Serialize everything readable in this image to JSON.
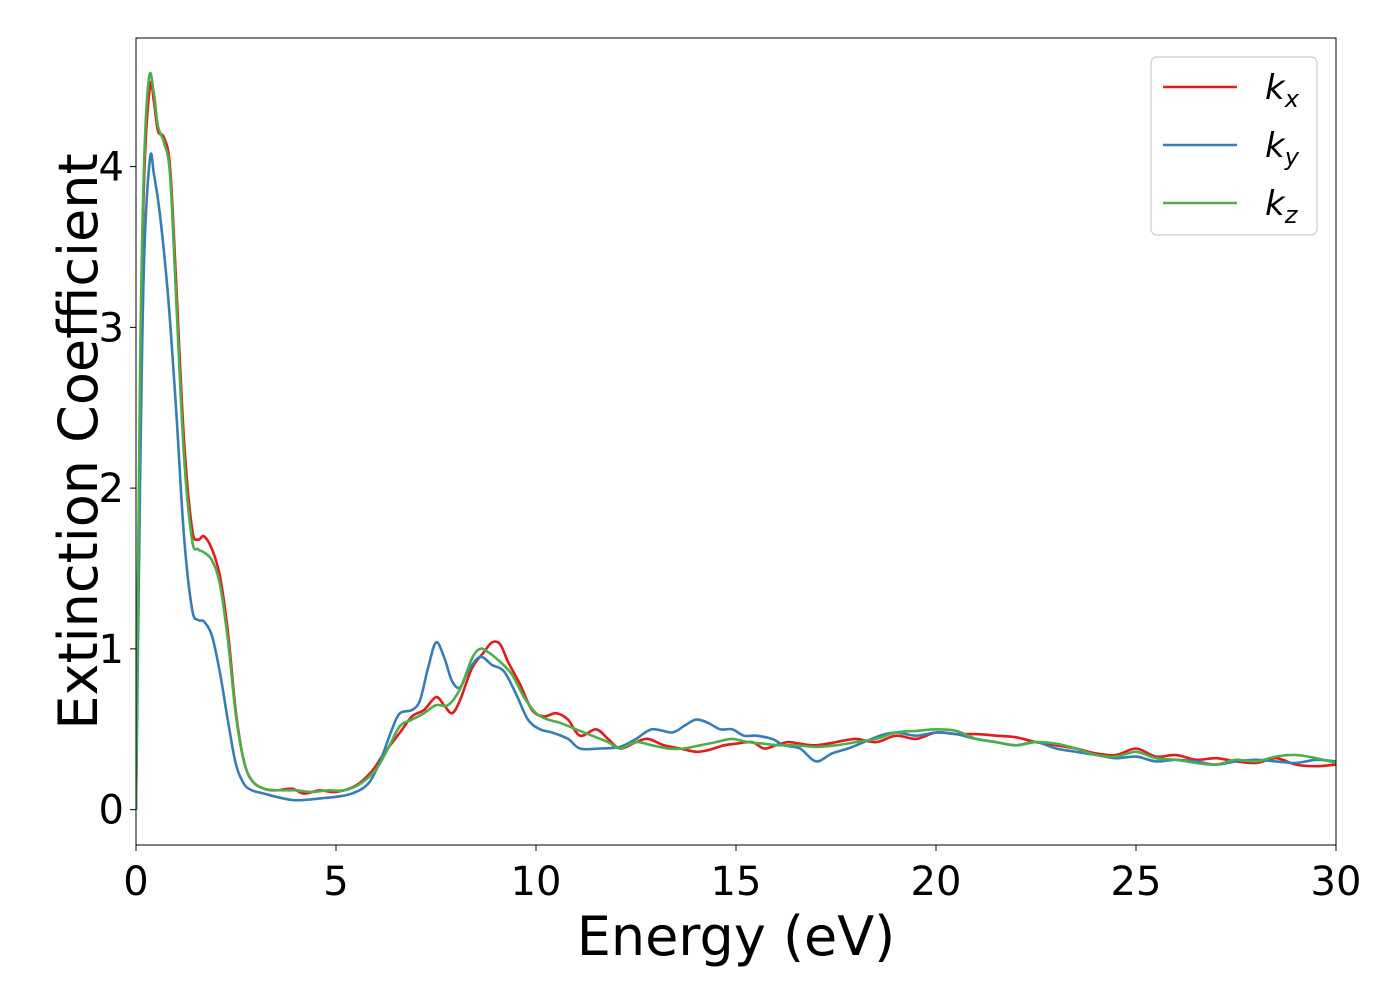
{
  "chart_data": {
    "type": "line",
    "xlabel": "Energy (eV)",
    "ylabel": "Extinction Coefficient",
    "xlim": [
      0,
      30
    ],
    "ylim": [
      -0.22,
      4.8
    ],
    "xticks": [
      0,
      5,
      10,
      15,
      20,
      25,
      30
    ],
    "yticks": [
      0,
      1,
      2,
      3,
      4
    ],
    "grid": false,
    "legend_position": "top-right",
    "series": [
      {
        "name": "kx",
        "name_main": "k",
        "name_sub": "x",
        "color": "#e41a1c",
        "points": [
          [
            0,
            0.0
          ],
          [
            0.1,
            2.5
          ],
          [
            0.2,
            3.9
          ],
          [
            0.35,
            4.5
          ],
          [
            0.45,
            4.4
          ],
          [
            0.55,
            4.22
          ],
          [
            0.7,
            4.18
          ],
          [
            0.85,
            4.0
          ],
          [
            1.0,
            3.3
          ],
          [
            1.2,
            2.3
          ],
          [
            1.4,
            1.75
          ],
          [
            1.55,
            1.68
          ],
          [
            1.7,
            1.7
          ],
          [
            1.9,
            1.62
          ],
          [
            2.1,
            1.45
          ],
          [
            2.3,
            1.1
          ],
          [
            2.5,
            0.6
          ],
          [
            2.7,
            0.3
          ],
          [
            2.9,
            0.18
          ],
          [
            3.2,
            0.13
          ],
          [
            3.5,
            0.12
          ],
          [
            3.9,
            0.13
          ],
          [
            4.2,
            0.1
          ],
          [
            4.6,
            0.12
          ],
          [
            5.0,
            0.11
          ],
          [
            5.5,
            0.15
          ],
          [
            5.9,
            0.24
          ],
          [
            6.2,
            0.35
          ],
          [
            6.6,
            0.48
          ],
          [
            6.9,
            0.58
          ],
          [
            7.2,
            0.62
          ],
          [
            7.5,
            0.7
          ],
          [
            7.7,
            0.65
          ],
          [
            7.9,
            0.6
          ],
          [
            8.1,
            0.68
          ],
          [
            8.4,
            0.88
          ],
          [
            8.7,
            0.98
          ],
          [
            8.9,
            1.04
          ],
          [
            9.1,
            1.03
          ],
          [
            9.3,
            0.92
          ],
          [
            9.6,
            0.78
          ],
          [
            9.9,
            0.62
          ],
          [
            10.2,
            0.58
          ],
          [
            10.5,
            0.6
          ],
          [
            10.8,
            0.56
          ],
          [
            11.1,
            0.46
          ],
          [
            11.5,
            0.5
          ],
          [
            11.8,
            0.44
          ],
          [
            12.1,
            0.38
          ],
          [
            12.5,
            0.42
          ],
          [
            12.8,
            0.44
          ],
          [
            13.2,
            0.4
          ],
          [
            13.6,
            0.38
          ],
          [
            14.0,
            0.36
          ],
          [
            14.3,
            0.37
          ],
          [
            14.7,
            0.4
          ],
          [
            15.0,
            0.41
          ],
          [
            15.4,
            0.42
          ],
          [
            15.7,
            0.38
          ],
          [
            16.0,
            0.4
          ],
          [
            16.3,
            0.42
          ],
          [
            16.6,
            0.41
          ],
          [
            17.0,
            0.4
          ],
          [
            17.5,
            0.42
          ],
          [
            18.0,
            0.44
          ],
          [
            18.5,
            0.42
          ],
          [
            19.0,
            0.46
          ],
          [
            19.5,
            0.44
          ],
          [
            20.0,
            0.48
          ],
          [
            20.5,
            0.47
          ],
          [
            21.0,
            0.47
          ],
          [
            21.5,
            0.46
          ],
          [
            22.0,
            0.45
          ],
          [
            22.5,
            0.42
          ],
          [
            23.0,
            0.4
          ],
          [
            23.5,
            0.38
          ],
          [
            24.0,
            0.35
          ],
          [
            24.5,
            0.34
          ],
          [
            25.0,
            0.38
          ],
          [
            25.5,
            0.33
          ],
          [
            26.0,
            0.34
          ],
          [
            26.5,
            0.31
          ],
          [
            27.0,
            0.32
          ],
          [
            27.5,
            0.3
          ],
          [
            28.0,
            0.29
          ],
          [
            28.5,
            0.32
          ],
          [
            29.0,
            0.28
          ],
          [
            29.5,
            0.27
          ],
          [
            30.0,
            0.28
          ]
        ]
      },
      {
        "name": "ky",
        "name_main": "k",
        "name_sub": "y",
        "color": "#377eb8",
        "points": [
          [
            0,
            0.0
          ],
          [
            0.1,
            2.0
          ],
          [
            0.2,
            3.4
          ],
          [
            0.35,
            4.05
          ],
          [
            0.45,
            3.95
          ],
          [
            0.6,
            3.7
          ],
          [
            0.8,
            3.2
          ],
          [
            1.0,
            2.5
          ],
          [
            1.2,
            1.7
          ],
          [
            1.4,
            1.25
          ],
          [
            1.55,
            1.18
          ],
          [
            1.7,
            1.17
          ],
          [
            1.9,
            1.08
          ],
          [
            2.1,
            0.85
          ],
          [
            2.3,
            0.55
          ],
          [
            2.5,
            0.28
          ],
          [
            2.7,
            0.16
          ],
          [
            2.9,
            0.12
          ],
          [
            3.2,
            0.1
          ],
          [
            3.5,
            0.08
          ],
          [
            3.9,
            0.06
          ],
          [
            4.2,
            0.06
          ],
          [
            4.6,
            0.07
          ],
          [
            5.0,
            0.08
          ],
          [
            5.4,
            0.1
          ],
          [
            5.8,
            0.16
          ],
          [
            6.1,
            0.3
          ],
          [
            6.4,
            0.5
          ],
          [
            6.6,
            0.6
          ],
          [
            6.9,
            0.62
          ],
          [
            7.1,
            0.68
          ],
          [
            7.3,
            0.88
          ],
          [
            7.5,
            1.04
          ],
          [
            7.7,
            0.95
          ],
          [
            7.9,
            0.8
          ],
          [
            8.1,
            0.76
          ],
          [
            8.3,
            0.86
          ],
          [
            8.6,
            0.95
          ],
          [
            8.9,
            0.9
          ],
          [
            9.2,
            0.86
          ],
          [
            9.5,
            0.72
          ],
          [
            9.8,
            0.56
          ],
          [
            10.1,
            0.5
          ],
          [
            10.4,
            0.48
          ],
          [
            10.8,
            0.44
          ],
          [
            11.1,
            0.38
          ],
          [
            11.6,
            0.38
          ],
          [
            12.1,
            0.39
          ],
          [
            12.5,
            0.44
          ],
          [
            12.9,
            0.5
          ],
          [
            13.4,
            0.48
          ],
          [
            13.7,
            0.52
          ],
          [
            14.0,
            0.56
          ],
          [
            14.3,
            0.54
          ],
          [
            14.6,
            0.5
          ],
          [
            14.9,
            0.5
          ],
          [
            15.2,
            0.46
          ],
          [
            15.5,
            0.46
          ],
          [
            15.9,
            0.44
          ],
          [
            16.2,
            0.4
          ],
          [
            16.6,
            0.38
          ],
          [
            17.0,
            0.3
          ],
          [
            17.4,
            0.35
          ],
          [
            17.8,
            0.38
          ],
          [
            18.2,
            0.42
          ],
          [
            18.6,
            0.46
          ],
          [
            19.0,
            0.48
          ],
          [
            19.5,
            0.46
          ],
          [
            20.0,
            0.48
          ],
          [
            20.5,
            0.47
          ],
          [
            21.0,
            0.44
          ],
          [
            21.5,
            0.42
          ],
          [
            22.0,
            0.4
          ],
          [
            22.5,
            0.42
          ],
          [
            23.0,
            0.38
          ],
          [
            23.5,
            0.36
          ],
          [
            24.0,
            0.34
          ],
          [
            24.5,
            0.32
          ],
          [
            25.0,
            0.33
          ],
          [
            25.5,
            0.3
          ],
          [
            26.0,
            0.31
          ],
          [
            26.5,
            0.3
          ],
          [
            27.0,
            0.28
          ],
          [
            27.5,
            0.3
          ],
          [
            28.0,
            0.31
          ],
          [
            28.5,
            0.3
          ],
          [
            29.0,
            0.29
          ],
          [
            29.5,
            0.31
          ],
          [
            30.0,
            0.3
          ]
        ]
      },
      {
        "name": "kz",
        "name_main": "k",
        "name_sub": "z",
        "color": "#4daf4a",
        "points": [
          [
            0,
            0.0
          ],
          [
            0.1,
            2.7
          ],
          [
            0.2,
            4.0
          ],
          [
            0.33,
            4.56
          ],
          [
            0.45,
            4.45
          ],
          [
            0.55,
            4.25
          ],
          [
            0.7,
            4.15
          ],
          [
            0.85,
            3.95
          ],
          [
            1.0,
            3.2
          ],
          [
            1.2,
            2.2
          ],
          [
            1.4,
            1.68
          ],
          [
            1.55,
            1.62
          ],
          [
            1.7,
            1.6
          ],
          [
            1.9,
            1.55
          ],
          [
            2.1,
            1.4
          ],
          [
            2.3,
            1.05
          ],
          [
            2.5,
            0.58
          ],
          [
            2.7,
            0.3
          ],
          [
            2.9,
            0.18
          ],
          [
            3.2,
            0.13
          ],
          [
            3.6,
            0.12
          ],
          [
            4.0,
            0.12
          ],
          [
            4.4,
            0.11
          ],
          [
            4.8,
            0.12
          ],
          [
            5.2,
            0.12
          ],
          [
            5.6,
            0.16
          ],
          [
            6.0,
            0.25
          ],
          [
            6.3,
            0.38
          ],
          [
            6.6,
            0.52
          ],
          [
            6.9,
            0.56
          ],
          [
            7.2,
            0.6
          ],
          [
            7.5,
            0.65
          ],
          [
            7.8,
            0.65
          ],
          [
            8.1,
            0.75
          ],
          [
            8.4,
            0.94
          ],
          [
            8.6,
            1.0
          ],
          [
            8.8,
            0.98
          ],
          [
            9.1,
            0.92
          ],
          [
            9.4,
            0.84
          ],
          [
            9.7,
            0.7
          ],
          [
            10.0,
            0.6
          ],
          [
            10.3,
            0.56
          ],
          [
            10.6,
            0.54
          ],
          [
            11.0,
            0.5
          ],
          [
            11.4,
            0.46
          ],
          [
            11.8,
            0.42
          ],
          [
            12.1,
            0.38
          ],
          [
            12.5,
            0.42
          ],
          [
            12.9,
            0.4
          ],
          [
            13.3,
            0.38
          ],
          [
            13.7,
            0.38
          ],
          [
            14.1,
            0.4
          ],
          [
            14.5,
            0.42
          ],
          [
            14.9,
            0.44
          ],
          [
            15.3,
            0.42
          ],
          [
            15.7,
            0.41
          ],
          [
            16.1,
            0.4
          ],
          [
            16.5,
            0.4
          ],
          [
            17.0,
            0.39
          ],
          [
            17.5,
            0.4
          ],
          [
            18.0,
            0.42
          ],
          [
            18.5,
            0.44
          ],
          [
            19.0,
            0.48
          ],
          [
            19.5,
            0.49
          ],
          [
            20.0,
            0.5
          ],
          [
            20.5,
            0.49
          ],
          [
            21.0,
            0.44
          ],
          [
            21.5,
            0.42
          ],
          [
            22.0,
            0.4
          ],
          [
            22.5,
            0.42
          ],
          [
            23.0,
            0.41
          ],
          [
            23.5,
            0.38
          ],
          [
            24.0,
            0.34
          ],
          [
            24.5,
            0.33
          ],
          [
            25.0,
            0.36
          ],
          [
            25.5,
            0.32
          ],
          [
            26.0,
            0.31
          ],
          [
            26.5,
            0.29
          ],
          [
            27.0,
            0.28
          ],
          [
            27.5,
            0.31
          ],
          [
            28.0,
            0.3
          ],
          [
            28.5,
            0.33
          ],
          [
            29.0,
            0.34
          ],
          [
            29.5,
            0.32
          ],
          [
            30.0,
            0.29
          ]
        ]
      }
    ]
  }
}
